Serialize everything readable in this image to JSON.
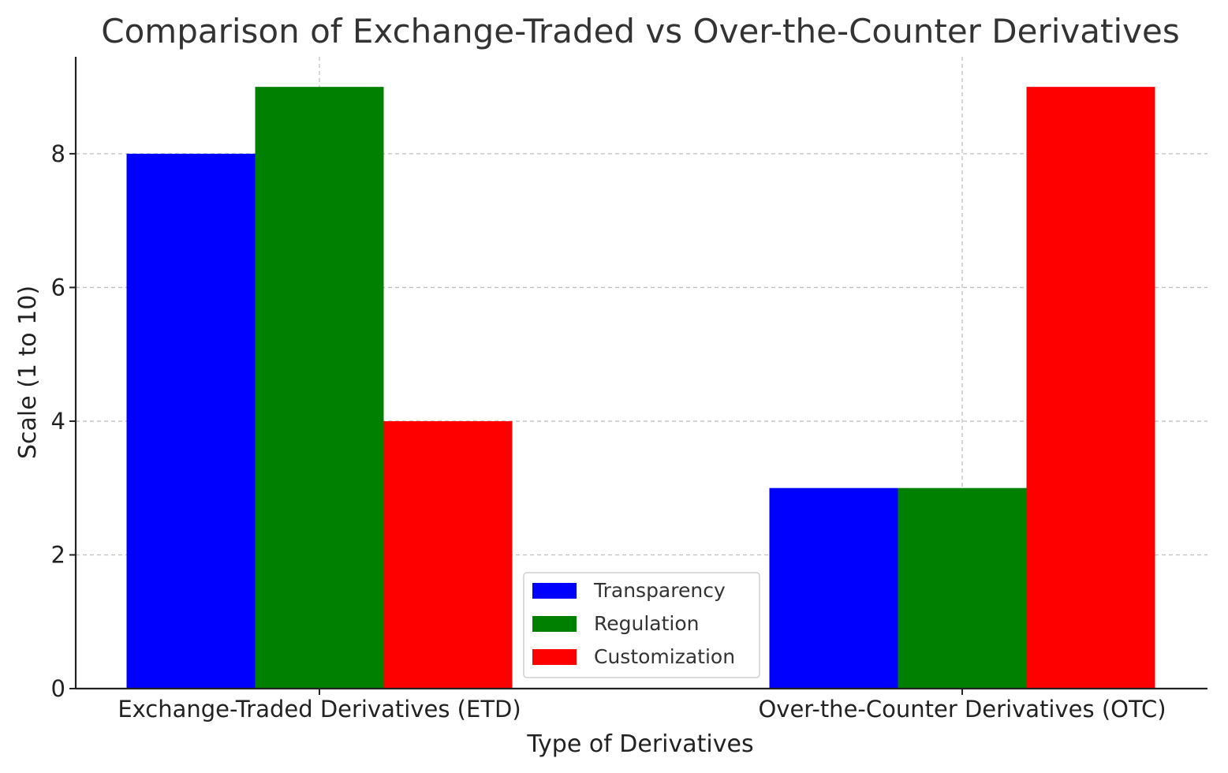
{
  "chart_data": {
    "type": "bar",
    "title": "Comparison of Exchange-Traded vs Over-the-Counter Derivatives",
    "xlabel": "Type of Derivatives",
    "ylabel": "Scale (1 to 10)",
    "categories": [
      "Exchange-Traded Derivatives (ETD)",
      "Over-the-Counter Derivatives (OTC)"
    ],
    "series": [
      {
        "name": "Transparency",
        "values": [
          8,
          3
        ],
        "color": "#0000ff"
      },
      {
        "name": "Regulation",
        "values": [
          9,
          3
        ],
        "color": "#008000"
      },
      {
        "name": "Customization",
        "values": [
          4,
          9
        ],
        "color": "#ff0000"
      }
    ],
    "ylim": [
      0,
      9.45
    ],
    "yticks": [
      0,
      2,
      4,
      6,
      8
    ],
    "grid": true,
    "legend_position": "lower-center"
  }
}
